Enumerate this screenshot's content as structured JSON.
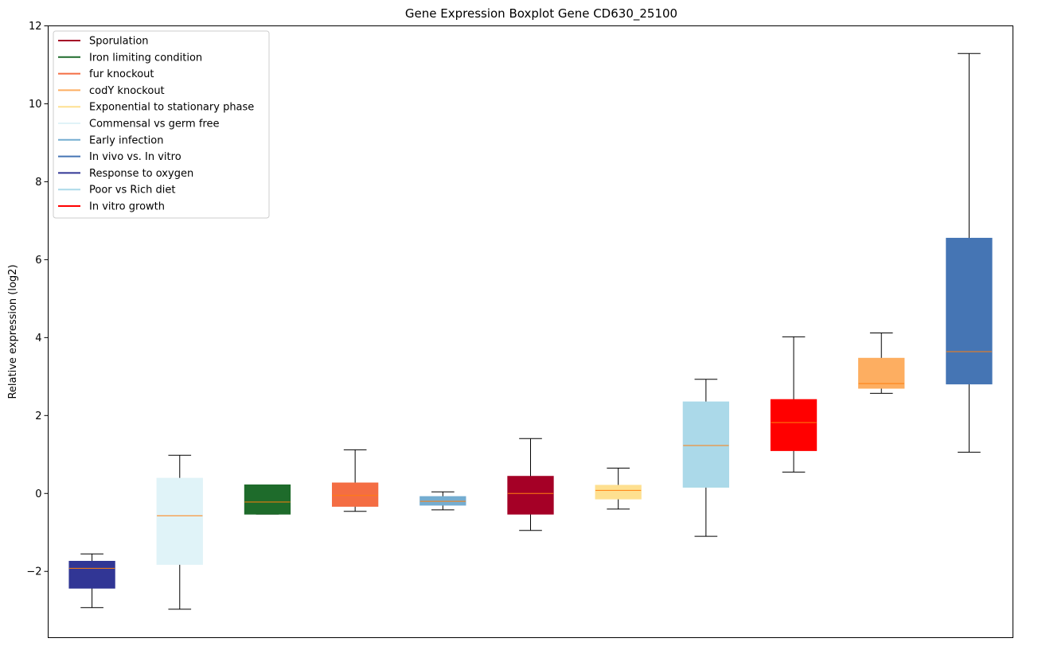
{
  "chart_data": {
    "type": "boxplot",
    "title": "Gene Expression Boxplot Gene CD630_25100",
    "xlabel": "",
    "ylabel": "Relative expression (log2)",
    "ylim": [
      -3.7,
      12
    ],
    "yticks": [
      -2,
      0,
      2,
      4,
      6,
      8,
      10,
      12
    ],
    "ytick_labels": [
      "−2",
      "0",
      "2",
      "4",
      "6",
      "8",
      "10",
      "12"
    ],
    "legend_position": "top-left",
    "legend": [
      {
        "label": "Sporulation",
        "color": "#a50026"
      },
      {
        "label": "Iron limiting condition",
        "color": "#1e6b2b"
      },
      {
        "label": "fur knockout",
        "color": "#f46d43"
      },
      {
        "label": "codY knockout",
        "color": "#fdae61"
      },
      {
        "label": "Exponential to stationary phase",
        "color": "#fee090"
      },
      {
        "label": "Commensal vs germ free",
        "color": "#e0f3f8"
      },
      {
        "label": "Early infection",
        "color": "#74add1"
      },
      {
        "label": "In vivo vs. In vitro",
        "color": "#4575b4"
      },
      {
        "label": "Response to oxygen",
        "color": "#313695"
      },
      {
        "label": "Poor vs Rich diet",
        "color": "#abd9e9"
      },
      {
        "label": "In vitro growth",
        "color": "#ff0000"
      }
    ],
    "median_color": "#ff7f0e",
    "boxes": [
      {
        "group": "Response to oxygen",
        "color": "#313695",
        "whislo": -2.93,
        "q1": -2.43,
        "med": -1.92,
        "q3": -1.74,
        "whishi": -1.55
      },
      {
        "group": "Commensal vs germ free",
        "color": "#e0f3f8",
        "whislo": -2.97,
        "q1": -1.82,
        "med": -0.57,
        "q3": 0.39,
        "whishi": 0.98
      },
      {
        "group": "Iron limiting condition",
        "color": "#1e6b2b",
        "whislo": -0.53,
        "q1": -0.53,
        "med": -0.22,
        "q3": 0.22,
        "whishi": 0.22
      },
      {
        "group": "fur knockout",
        "color": "#f46d43",
        "whislo": -0.46,
        "q1": -0.33,
        "med": -0.05,
        "q3": 0.27,
        "whishi": 1.12
      },
      {
        "group": "Early infection",
        "color": "#74add1",
        "whislo": -0.42,
        "q1": -0.3,
        "med": -0.2,
        "q3": -0.08,
        "whishi": 0.04
      },
      {
        "group": "Sporulation",
        "color": "#a50026",
        "whislo": -0.95,
        "q1": -0.53,
        "med": 0.0,
        "q3": 0.44,
        "whishi": 1.41
      },
      {
        "group": "Exponential to stationary phase",
        "color": "#fee090",
        "whislo": -0.4,
        "q1": -0.14,
        "med": 0.08,
        "q3": 0.21,
        "whishi": 0.65
      },
      {
        "group": "Poor vs Rich diet",
        "color": "#abd9e9",
        "whislo": -1.1,
        "q1": 0.16,
        "med": 1.23,
        "q3": 2.35,
        "whishi": 2.93
      },
      {
        "group": "In vitro growth",
        "color": "#ff0000",
        "whislo": 0.55,
        "q1": 1.1,
        "med": 1.82,
        "q3": 2.41,
        "whishi": 4.02
      },
      {
        "group": "codY knockout",
        "color": "#fdae61",
        "whislo": 2.57,
        "q1": 2.7,
        "med": 2.82,
        "q3": 3.47,
        "whishi": 4.12
      },
      {
        "group": "In vivo vs. In vitro",
        "color": "#4575b4",
        "whislo": 1.06,
        "q1": 2.81,
        "med": 3.64,
        "q3": 6.55,
        "whishi": 11.29
      }
    ]
  }
}
